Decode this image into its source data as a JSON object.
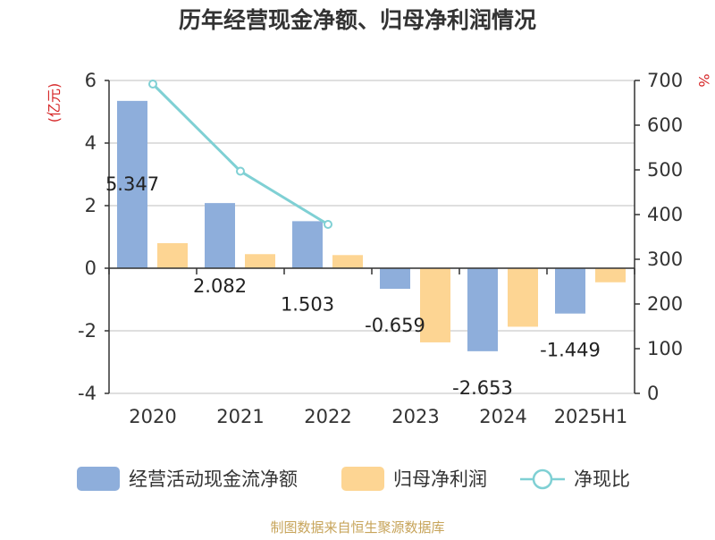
{
  "chart_data": {
    "type": "bar",
    "title": "历年经营现金净额、归母净利润情况",
    "categories": [
      "2020",
      "2021",
      "2022",
      "2023",
      "2024",
      "2025H1"
    ],
    "y_left": {
      "label": "(亿元)",
      "ticks": [
        "6",
        "4",
        "2",
        "0",
        "-2",
        "-4"
      ],
      "range": [
        -4,
        6
      ]
    },
    "y_right": {
      "label": "%",
      "ticks": [
        "700",
        "600",
        "500",
        "400",
        "300",
        "200",
        "100",
        "0"
      ],
      "range": [
        0,
        700
      ]
    },
    "grid": true,
    "series": [
      {
        "name": "经营活动现金流净额",
        "kind": "bar",
        "axis": "left",
        "color": "#8eaedb",
        "values": [
          5.347,
          2.082,
          1.503,
          -0.659,
          -2.653,
          -1.449
        ],
        "labels": [
          "5.347",
          "2.082",
          "1.503",
          "-0.659",
          "-2.653",
          "-1.449"
        ]
      },
      {
        "name": "归母净利润",
        "kind": "bar",
        "axis": "left",
        "color": "#fdd593",
        "values": [
          0.8,
          0.45,
          0.42,
          -2.37,
          -1.87,
          -0.45
        ]
      },
      {
        "name": "净现比",
        "kind": "line",
        "axis": "right",
        "color": "#7fd0d4",
        "values": [
          692,
          497,
          378,
          null,
          null,
          null
        ]
      }
    ],
    "legend_position": "bottom"
  },
  "footer": {
    "source": "制图数据来自恒生聚源数据库"
  }
}
